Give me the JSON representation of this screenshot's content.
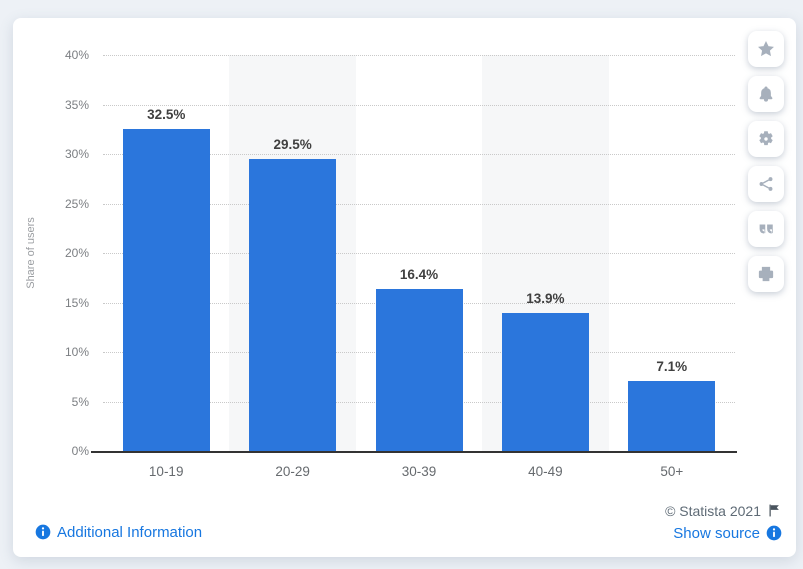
{
  "chart_data": {
    "type": "bar",
    "title": "",
    "categories": [
      "10-19",
      "20-29",
      "30-39",
      "40-49",
      "50+"
    ],
    "values": [
      32.5,
      29.5,
      16.4,
      13.9,
      7.1
    ],
    "data_labels": [
      "32.5%",
      "29.5%",
      "16.4%",
      "13.9%",
      "7.1%"
    ],
    "xlabel": "",
    "ylabel": "Share of users",
    "ylim": [
      0,
      40
    ],
    "ytick_step": 5,
    "ytick_suffix": "%",
    "grid": "horizontal-dotted",
    "legend": "none",
    "bar_color": "#2b76dc",
    "band_color": "#f6f7f8",
    "band_columns": [
      1,
      3
    ]
  },
  "toolbar": {
    "icons": [
      "star",
      "bell",
      "gear",
      "share",
      "quote",
      "print"
    ]
  },
  "footer": {
    "additional_info_label": "Additional Information",
    "copyright": "© Statista 2021",
    "show_source_label": "Show source"
  },
  "colors": {
    "link_blue": "#1777e0",
    "icon_gray": "#a7b0bc",
    "axis_text": "#7b7e82",
    "data_label": "#404040"
  }
}
